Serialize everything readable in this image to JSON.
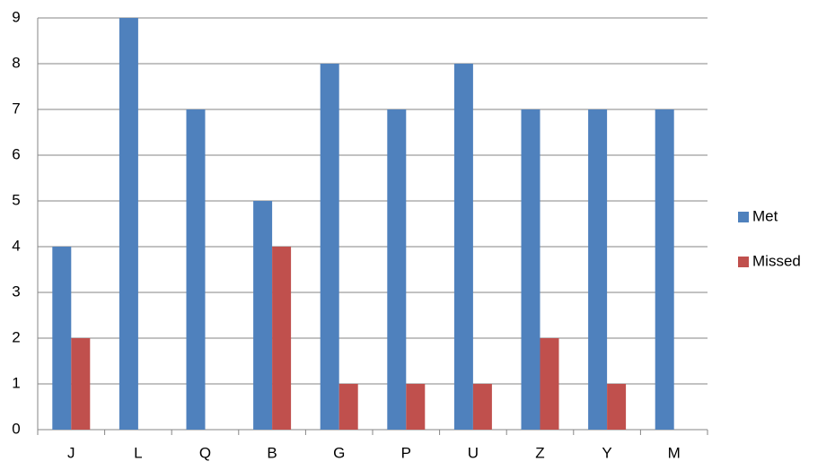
{
  "chart_data": {
    "type": "bar",
    "categories": [
      "J",
      "L",
      "Q",
      "B",
      "G",
      "P",
      "U",
      "Z",
      "Y",
      "M"
    ],
    "series": [
      {
        "name": "Met",
        "color": "#4f81bd",
        "values": [
          4,
          9,
          7,
          5,
          8,
          7,
          8,
          7,
          7,
          7
        ]
      },
      {
        "name": "Missed",
        "color": "#c0504d",
        "values": [
          2,
          0,
          0,
          4,
          1,
          1,
          1,
          2,
          1,
          0
        ]
      }
    ],
    "ylim": [
      0,
      9
    ],
    "yticks": [
      0,
      1,
      2,
      3,
      4,
      5,
      6,
      7,
      8,
      9
    ],
    "grid": true,
    "legend": "right"
  }
}
